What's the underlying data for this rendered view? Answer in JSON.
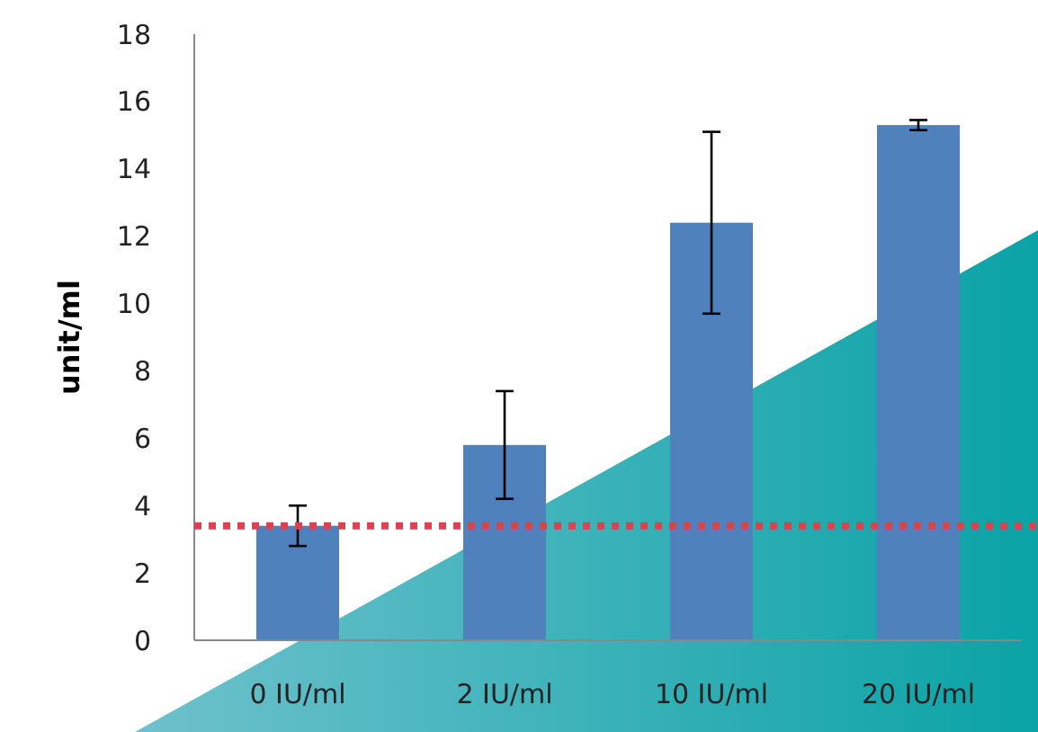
{
  "chart_data": {
    "type": "bar",
    "ylabel": "unit/ml",
    "categories": [
      "0 IU/ml",
      "2 IU/ml",
      "10 IU/ml",
      "20 IU/ml"
    ],
    "values": [
      3.4,
      5.8,
      12.4,
      15.3
    ],
    "color": "#4f81bd",
    "errors": [
      0.6,
      1.6,
      2.7,
      0.15
    ],
    "ylim": [
      0,
      18
    ],
    "yticks": [
      0,
      2,
      4,
      6,
      8,
      10,
      12,
      14,
      16,
      18
    ],
    "grid": false,
    "ref_lines": [
      {
        "axis": "y",
        "value": 3.4,
        "color": "#d9434f",
        "line_style": "dotted"
      }
    ]
  }
}
